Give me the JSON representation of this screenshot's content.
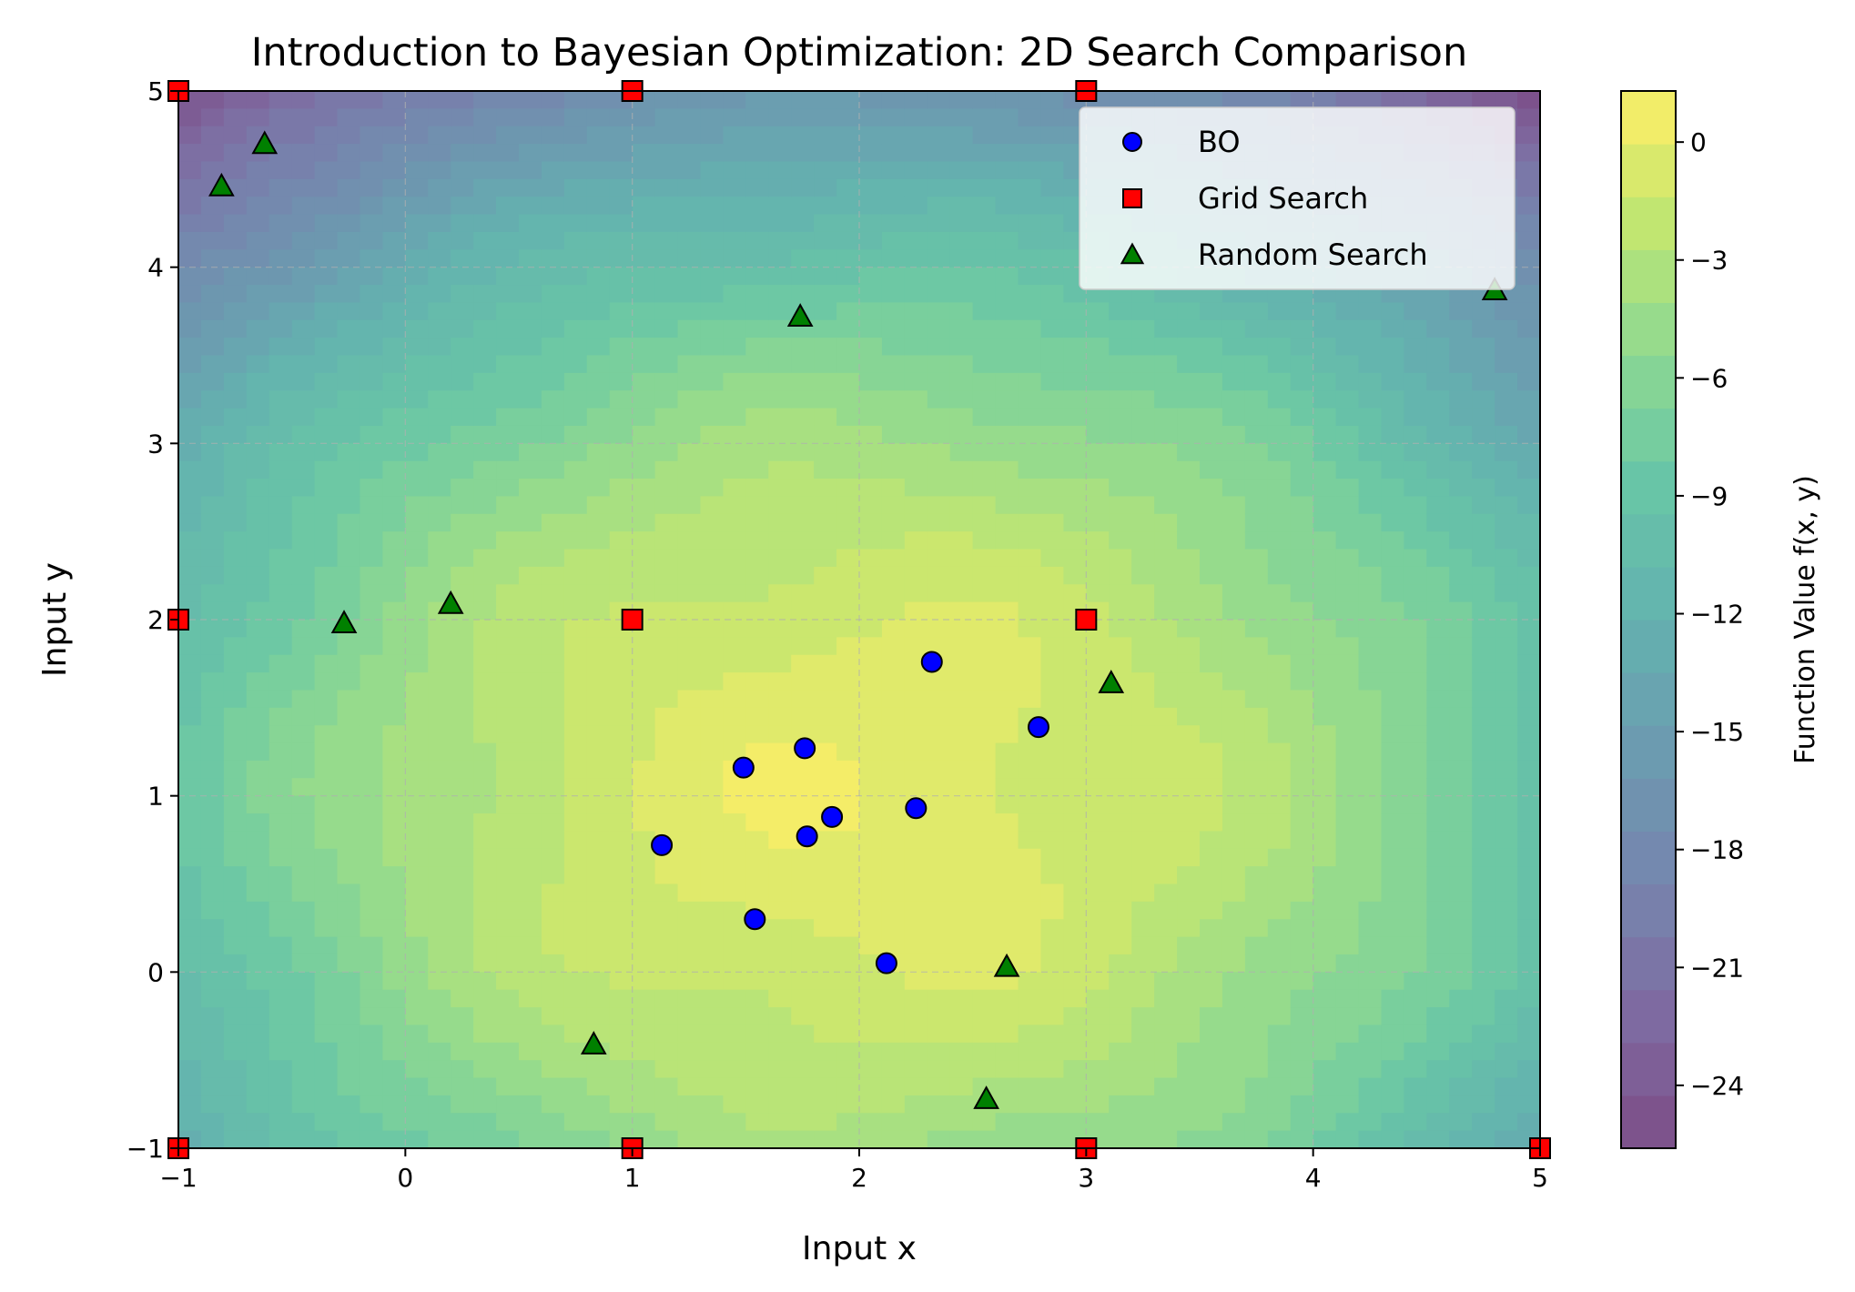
{
  "chart_data": {
    "type": "scatter",
    "title": "Introduction to Bayesian Optimization: 2D Search Comparison",
    "xlabel": "Input x",
    "ylabel": "Input y",
    "xlim": [
      -1,
      5
    ],
    "ylim": [
      -1,
      5
    ],
    "x_ticks": [
      "−1",
      "0",
      "1",
      "2",
      "3",
      "4",
      "5"
    ],
    "y_ticks": [
      "−1",
      "0",
      "1",
      "2",
      "3",
      "4",
      "5"
    ],
    "grid": true,
    "background": "filled contour plot of f(x, y), maximum near (2, 1)",
    "colorbar": {
      "label": "Function Value f(x, y)",
      "range": [
        -25.6,
        1.3
      ],
      "ticks": [
        0,
        -3,
        -6,
        -9,
        -12,
        -15,
        -18,
        -21,
        -24
      ],
      "tick_labels": [
        "0",
        "−3",
        "−6",
        "−9",
        "−12",
        "−15",
        "−18",
        "−21",
        "−24"
      ],
      "colormap": "viridis"
    },
    "legend": {
      "position": "top-right"
    },
    "series": [
      {
        "name": "BO",
        "marker": "circle",
        "color": "#0000ff",
        "points": [
          [
            1.13,
            0.72
          ],
          [
            1.49,
            1.16
          ],
          [
            1.76,
            1.27
          ],
          [
            1.77,
            0.77
          ],
          [
            1.88,
            0.88
          ],
          [
            1.54,
            0.3
          ],
          [
            2.12,
            0.05
          ],
          [
            2.25,
            0.93
          ],
          [
            2.32,
            1.76
          ],
          [
            2.79,
            1.39
          ]
        ]
      },
      {
        "name": "Grid Search",
        "marker": "square",
        "color": "#ff0000",
        "points": [
          [
            -1,
            5
          ],
          [
            1,
            5
          ],
          [
            3,
            5
          ],
          [
            -1,
            2
          ],
          [
            1,
            2
          ],
          [
            3,
            2
          ],
          [
            -1,
            -1
          ],
          [
            1,
            -1
          ],
          [
            3,
            -1
          ],
          [
            5,
            -1
          ]
        ]
      },
      {
        "name": "Random Search",
        "marker": "triangle",
        "color": "#008000",
        "points": [
          [
            -0.62,
            4.7
          ],
          [
            -0.81,
            4.46
          ],
          [
            1.74,
            3.72
          ],
          [
            4.8,
            3.87
          ],
          [
            -0.27,
            1.98
          ],
          [
            0.2,
            2.09
          ],
          [
            3.11,
            1.64
          ],
          [
            2.65,
            0.03
          ],
          [
            0.83,
            -0.41
          ],
          [
            2.56,
            -0.72
          ]
        ]
      }
    ]
  }
}
